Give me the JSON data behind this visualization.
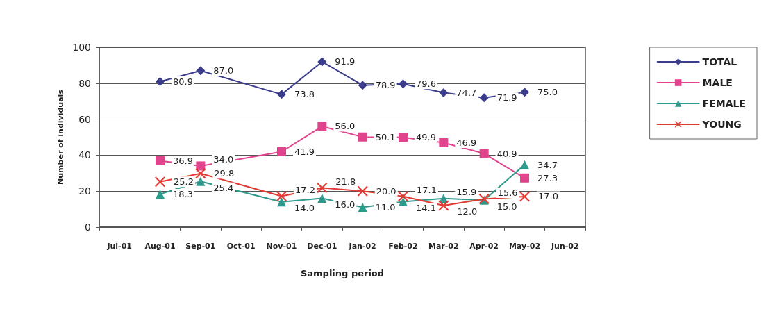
{
  "chart_data": {
    "type": "line",
    "xlabel": "Sampling period",
    "ylabel": "Number of individuals",
    "categories": [
      "Jul-01",
      "Aug-01",
      "Sep-01",
      "Oct-01",
      "Nov-01",
      "Dec-01",
      "Jan-02",
      "Feb-02",
      "Mar-02",
      "Apr-02",
      "May-02",
      "Jun-02"
    ],
    "series": [
      {
        "name": "TOTAL",
        "color": "#3c3c8c",
        "marker": "diamond",
        "values": [
          null,
          80.9,
          87.0,
          null,
          73.8,
          91.9,
          78.9,
          79.6,
          74.7,
          71.9,
          75.0,
          null
        ],
        "value_labels": [
          null,
          "80.9",
          "87.0",
          null,
          "73.8",
          "91.9",
          "78.9",
          "79.6",
          "74.7",
          "71.9",
          "75.0",
          null
        ]
      },
      {
        "name": "MALE",
        "color": "#e0448c",
        "marker": "square",
        "values": [
          null,
          36.9,
          34.0,
          null,
          41.9,
          56.0,
          50.1,
          49.9,
          46.9,
          40.9,
          27.3,
          null
        ],
        "value_labels": [
          null,
          "36.9",
          "34.0",
          null,
          "41.9",
          "56.0",
          "50.1",
          "49.9",
          "46.9",
          "40.9",
          "27.3",
          null
        ]
      },
      {
        "name": "FEMALE",
        "color": "#2e9a8c",
        "marker": "triangle",
        "values": [
          null,
          18.3,
          25.4,
          null,
          14.0,
          16.0,
          11.0,
          14.1,
          15.9,
          15.0,
          34.7,
          null
        ],
        "value_labels": [
          null,
          "18.3",
          "25.4",
          null,
          "14.0",
          "16.0",
          "11.0",
          "14.1",
          "15.9",
          "15.0",
          "34.7",
          null
        ]
      },
      {
        "name": "YOUNG",
        "color": "#e23a32",
        "marker": "cross",
        "values": [
          null,
          25.2,
          29.8,
          null,
          17.2,
          21.8,
          20.0,
          17.1,
          12.0,
          15.6,
          17.0,
          null
        ],
        "value_labels": [
          null,
          "25.2",
          "29.8",
          null,
          "17.2",
          "21.8",
          "20.0",
          "17.1",
          "12.0",
          "15.6",
          "17.0",
          null
        ]
      }
    ],
    "ylim": [
      0,
      100
    ],
    "yticks": [
      0,
      20,
      40,
      60,
      80,
      100
    ],
    "grid": "y",
    "legend": "right",
    "line_style": "solid"
  }
}
